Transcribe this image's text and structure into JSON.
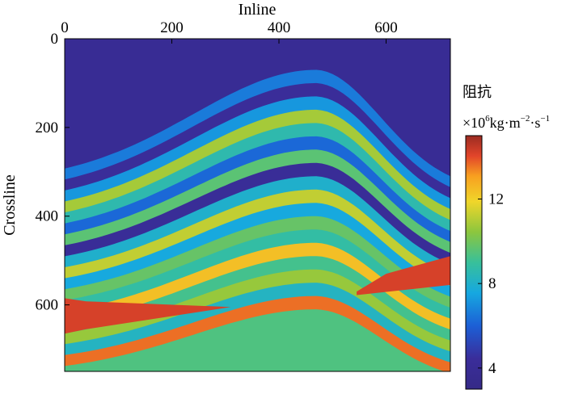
{
  "chart_data": {
    "type": "heatmap",
    "title": "",
    "xlabel": "Inline",
    "ylabel": "Crossline",
    "x_axis_position": "top",
    "xlim": [
      0,
      720
    ],
    "ylim": [
      0,
      750
    ],
    "y_direction": "downward",
    "x_ticks": [
      "0",
      "200",
      "400",
      "600"
    ],
    "x_tick_values": [
      0,
      200,
      400,
      600
    ],
    "y_ticks": [
      "0",
      "200",
      "400",
      "600"
    ],
    "y_tick_values": [
      0,
      200,
      400,
      600
    ],
    "grid": false,
    "colorbar": {
      "title": "阻抗",
      "unit_parts": {
        "prefix": "×10",
        "exp1": "6",
        "m1": "kg·m",
        "exp2": "−2",
        "m2": "·s",
        "exp3": "−1"
      },
      "range": [
        3,
        15
      ],
      "ticks": [
        "4",
        "8",
        "12"
      ],
      "tick_values": [
        4,
        8,
        12
      ],
      "colormap": "jet",
      "location": "right"
    },
    "colors": {
      "background_low": "#3a2d8f",
      "fault_block": "#9b2b22"
    },
    "layers": [
      {
        "name": "",
        "impedance": 4.0
      },
      {
        "name": "",
        "impedance": 6.6
      },
      {
        "name": "",
        "impedance": 4.4
      },
      {
        "name": "",
        "impedance": 7.2
      },
      {
        "name": "",
        "impedance": 10.8
      },
      {
        "name": "",
        "impedance": 8.6
      },
      {
        "name": "",
        "impedance": 6.2
      },
      {
        "name": "",
        "impedance": 9.6
      },
      {
        "name": "",
        "impedance": 4.2
      },
      {
        "name": "",
        "impedance": 8.0
      },
      {
        "name": "",
        "impedance": 11.2
      },
      {
        "name": "",
        "impedance": 7.6
      },
      {
        "name": "",
        "impedance": 9.8
      },
      {
        "name": "",
        "impedance": 8.8
      },
      {
        "name": "",
        "impedance": 12.4
      },
      {
        "name": "",
        "impedance": 9.2
      },
      {
        "name": "",
        "impedance": 10.6
      },
      {
        "name": "",
        "impedance": 8.2
      },
      {
        "name": "",
        "impedance": 13.6
      },
      {
        "name": "",
        "impedance": 9.4
      }
    ],
    "fault_block_impedance": 14.2
  }
}
